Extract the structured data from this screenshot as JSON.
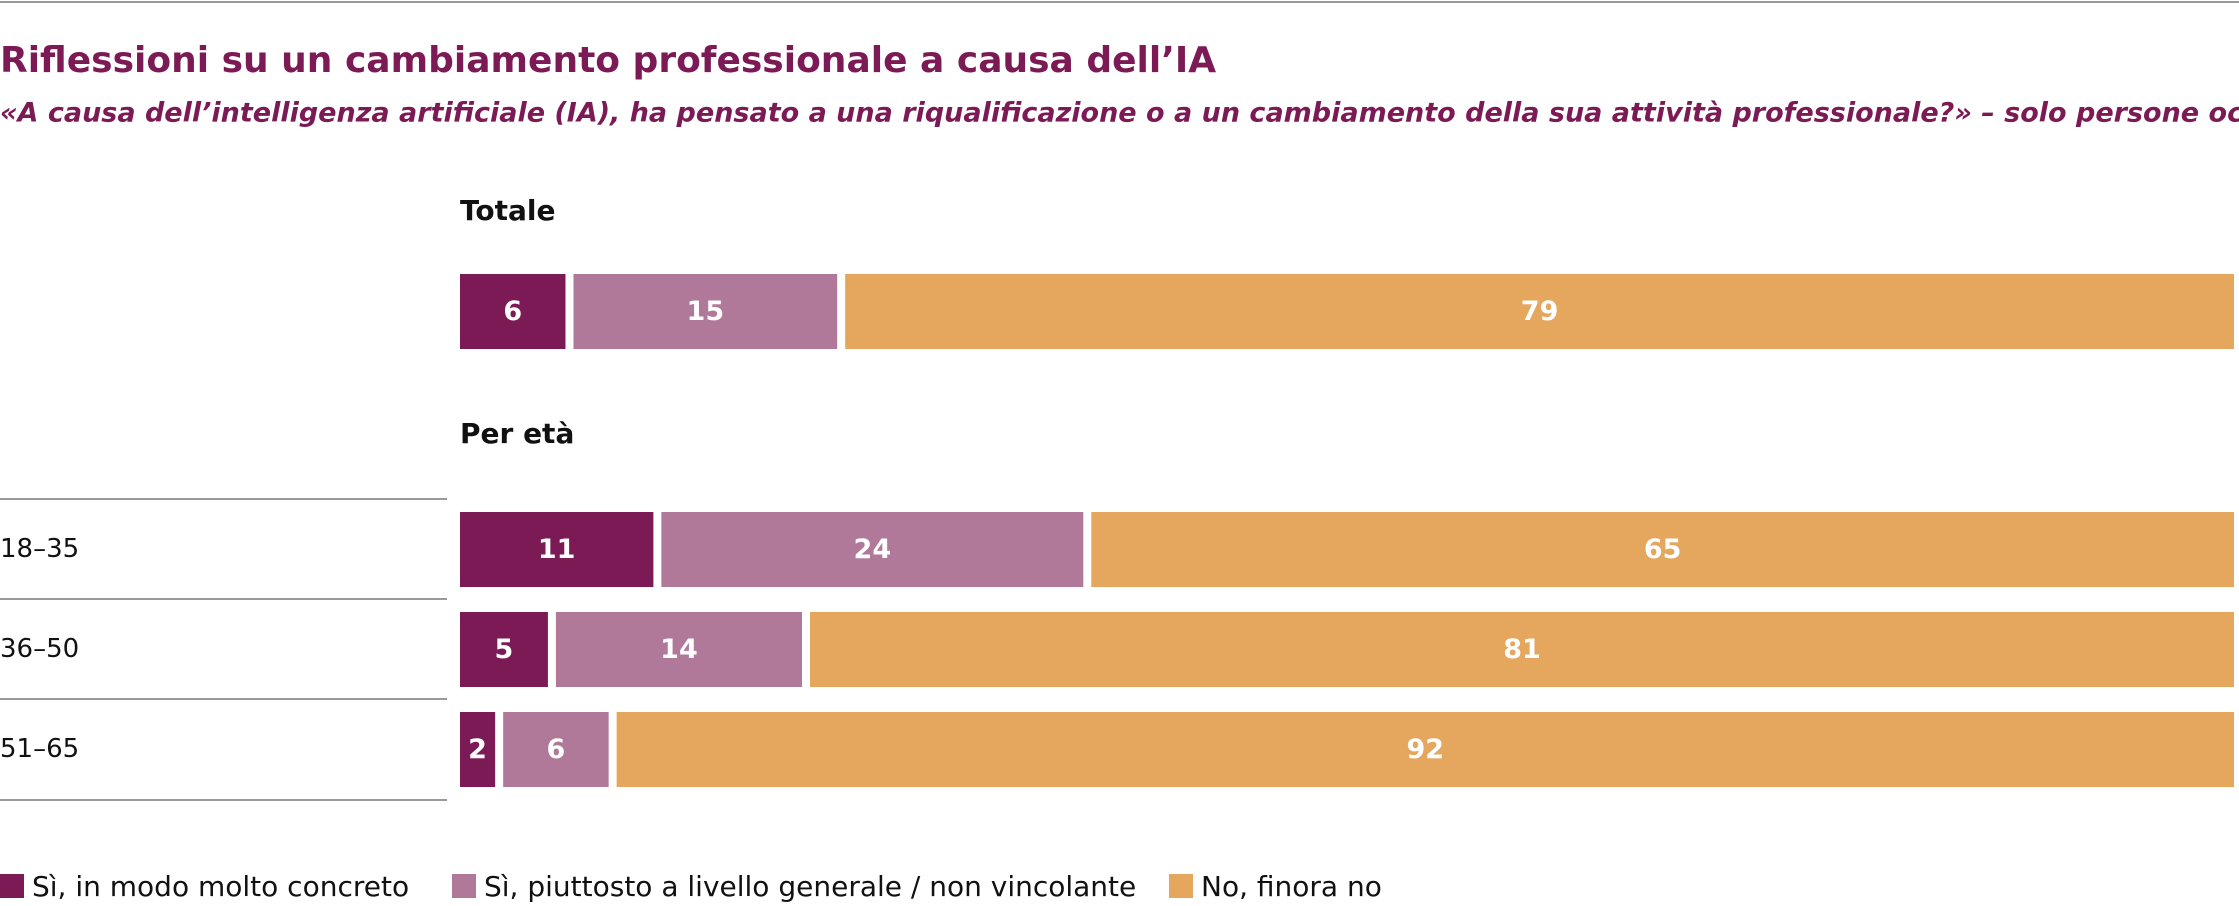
{
  "chart_data": {
    "type": "bar",
    "title": "Riflessioni su un cambiamento professionale a causa dell’IA",
    "subtitle": "«A causa dell’intelligenza artificiale (IA), ha pensato a una riqualificazione o a un cambiamento della sua attività professionale?» – solo persone occupate",
    "subheading": "Per età",
    "categories": [
      "Totale",
      "18–35",
      "36–50",
      "51–65"
    ],
    "series": [
      {
        "name": "Sì, in modo molto concreto",
        "color": "#7b1a55",
        "values": [
          6,
          11,
          5,
          2
        ]
      },
      {
        "name": "Sì, piuttosto a livello generale / non vincolante",
        "color": "#b07899",
        "values": [
          15,
          24,
          14,
          6
        ]
      },
      {
        "name": "No, finora no",
        "color": "#e5a65e",
        "values": [
          79,
          65,
          81,
          92
        ]
      }
    ]
  }
}
